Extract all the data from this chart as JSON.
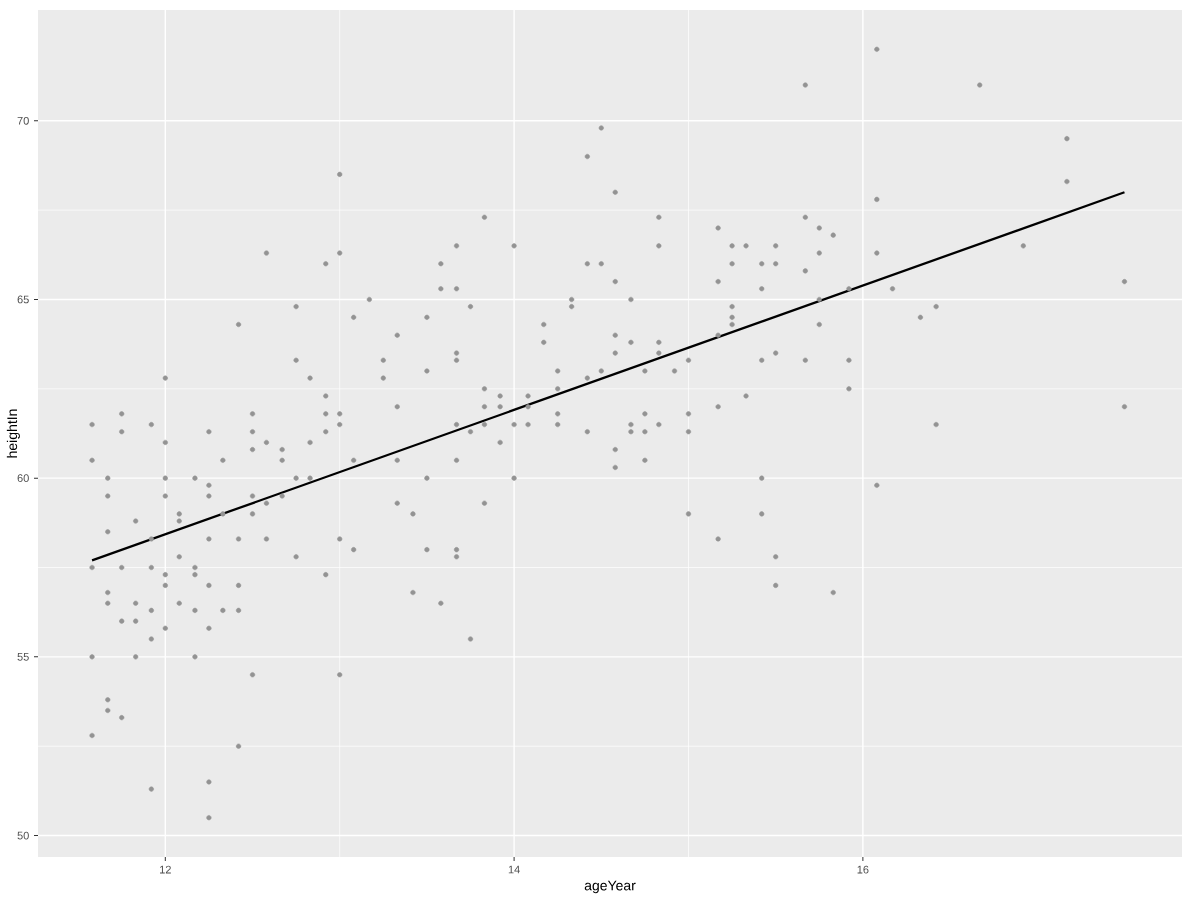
{
  "chart_data": {
    "type": "scatter",
    "xlabel": "ageYear",
    "ylabel": "heightIn",
    "xlim": [
      11.27,
      17.83
    ],
    "ylim": [
      49.4,
      73.1
    ],
    "xticks": [
      12,
      14,
      16
    ],
    "yticks": [
      50,
      55,
      60,
      65,
      70
    ],
    "grid": true,
    "series": [
      {
        "marker": "circle",
        "color": "#939393",
        "x": [
          12.75,
          13.17,
          13.08,
          12.42,
          13.33,
          12.75,
          13.25,
          12.0,
          12.83,
          13.25,
          12.92,
          11.75,
          12.5,
          12.92,
          13.0,
          13.33,
          11.58,
          11.92,
          13.0,
          11.75,
          12.25,
          12.5,
          12.92,
          12.0,
          12.58,
          12.83,
          12.5,
          12.67,
          11.58,
          12.33,
          12.67,
          13.08,
          13.33,
          11.67,
          12.0,
          12.17,
          12.75,
          12.83,
          12.25,
          11.67,
          12.0,
          12.25,
          12.5,
          12.67,
          12.58,
          13.33,
          13.42,
          12.08,
          12.33,
          12.5,
          11.83,
          12.08,
          11.67,
          11.92,
          12.25,
          12.42,
          12.58,
          13.0,
          13.08,
          12.08,
          12.75,
          11.58,
          11.75,
          11.92,
          12.17,
          12.0,
          12.17,
          12.92,
          12.0,
          12.25,
          12.42,
          11.67,
          13.42,
          11.67,
          11.83,
          12.08,
          11.92,
          12.17,
          12.33,
          12.42,
          11.75,
          11.83,
          12.0,
          12.25,
          11.92,
          11.58,
          11.83,
          12.17,
          12.5,
          13.0,
          11.67,
          11.67,
          11.75,
          11.58,
          12.42,
          11.92,
          12.25,
          12.25,
          13.0,
          12.58,
          13.0,
          12.92,
          14.5,
          14.42,
          14.58,
          13.83,
          14.83,
          15.17,
          13.67,
          14.0,
          14.83,
          15.25,
          15.33,
          15.5,
          13.58,
          14.42,
          14.5,
          15.25,
          15.42,
          15.5,
          14.58,
          15.17,
          13.58,
          13.67,
          15.42,
          14.33,
          14.67,
          13.75,
          14.33,
          15.25,
          13.5,
          15.25,
          14.17,
          15.25,
          14.58,
          15.17,
          14.17,
          14.67,
          14.83,
          13.67,
          14.58,
          14.83,
          15.5,
          13.67,
          15.0,
          15.42,
          13.5,
          14.25,
          14.5,
          14.75,
          14.92,
          14.42,
          13.83,
          14.25,
          13.92,
          14.08,
          15.33,
          13.83,
          13.92,
          14.08,
          15.17,
          14.25,
          14.75,
          15.0,
          13.67,
          13.83,
          14.0,
          14.08,
          14.25,
          14.67,
          14.83,
          13.75,
          14.42,
          14.67,
          14.75,
          15.0,
          13.92,
          14.58,
          13.67,
          14.75,
          14.58,
          13.5,
          14.0,
          15.42,
          13.83,
          15.0,
          15.42,
          15.17,
          13.5,
          13.67,
          13.67,
          15.5,
          15.5,
          13.58,
          13.75,
          16.08,
          15.67,
          16.67,
          17.17,
          17.17,
          16.08,
          15.67,
          15.75,
          15.83,
          16.92,
          15.75,
          16.08,
          15.67,
          15.92,
          17.5,
          16.17,
          15.75,
          16.42,
          16.33,
          15.75,
          15.67,
          15.92,
          15.92,
          17.5,
          16.42,
          16.08,
          15.83
        ],
        "values": [
          64.8,
          65.0,
          64.5,
          64.3,
          64.0,
          63.3,
          63.3,
          62.8,
          62.8,
          62.8,
          62.3,
          61.8,
          61.8,
          61.8,
          61.8,
          62.0,
          61.5,
          61.5,
          61.5,
          61.3,
          61.3,
          61.3,
          61.3,
          61.0,
          61.0,
          61.0,
          60.8,
          60.8,
          60.5,
          60.5,
          60.5,
          60.5,
          60.5,
          60.0,
          60.0,
          60.0,
          60.0,
          60.0,
          59.8,
          59.5,
          59.5,
          59.5,
          59.5,
          59.5,
          59.3,
          59.3,
          59.0,
          59.0,
          59.0,
          59.0,
          58.8,
          58.8,
          58.5,
          58.3,
          58.3,
          58.3,
          58.3,
          58.3,
          58.0,
          57.8,
          57.8,
          57.5,
          57.5,
          57.5,
          57.5,
          57.3,
          57.3,
          57.3,
          57.0,
          57.0,
          57.0,
          56.8,
          56.8,
          56.5,
          56.5,
          56.5,
          56.3,
          56.3,
          56.3,
          56.3,
          56.0,
          56.0,
          55.8,
          55.8,
          55.5,
          55.0,
          55.0,
          55.0,
          54.5,
          54.5,
          53.8,
          53.5,
          53.3,
          52.8,
          52.5,
          51.3,
          51.5,
          50.5,
          68.5,
          66.3,
          66.3,
          66.0,
          69.8,
          69.0,
          68.0,
          67.3,
          67.3,
          67.0,
          66.5,
          66.5,
          66.5,
          66.5,
          66.5,
          66.5,
          66.0,
          66.0,
          66.0,
          66.0,
          66.0,
          66.0,
          65.5,
          65.5,
          65.3,
          65.3,
          65.3,
          65.0,
          65.0,
          64.8,
          64.8,
          64.8,
          64.5,
          64.5,
          64.3,
          64.3,
          64.0,
          64.0,
          63.8,
          63.8,
          63.8,
          63.5,
          63.5,
          63.5,
          63.5,
          63.3,
          63.3,
          63.3,
          63.0,
          63.0,
          63.0,
          63.0,
          63.0,
          62.8,
          62.5,
          62.5,
          62.3,
          62.3,
          62.3,
          62.0,
          62.0,
          62.0,
          62.0,
          61.8,
          61.8,
          61.8,
          61.5,
          61.5,
          61.5,
          61.5,
          61.5,
          61.5,
          61.5,
          61.3,
          61.3,
          61.3,
          61.3,
          61.3,
          61.0,
          60.8,
          60.5,
          60.5,
          60.3,
          60.0,
          60.0,
          60.0,
          59.3,
          59.0,
          59.0,
          58.3,
          58.0,
          58.0,
          57.8,
          57.8,
          57.0,
          56.5,
          55.5,
          72.0,
          71.0,
          71.0,
          69.5,
          68.3,
          67.8,
          67.3,
          67.0,
          66.8,
          66.5,
          66.3,
          66.3,
          65.8,
          65.3,
          65.5,
          65.3,
          65.0,
          64.8,
          64.5,
          64.3,
          63.3,
          63.3,
          62.5,
          62.0,
          61.5,
          59.8,
          56.8
        ]
      },
      {
        "type": "line",
        "marker": "none",
        "color": "#000000",
        "x": [
          11.58,
          17.5
        ],
        "values": [
          57.7,
          68.0
        ]
      }
    ]
  }
}
